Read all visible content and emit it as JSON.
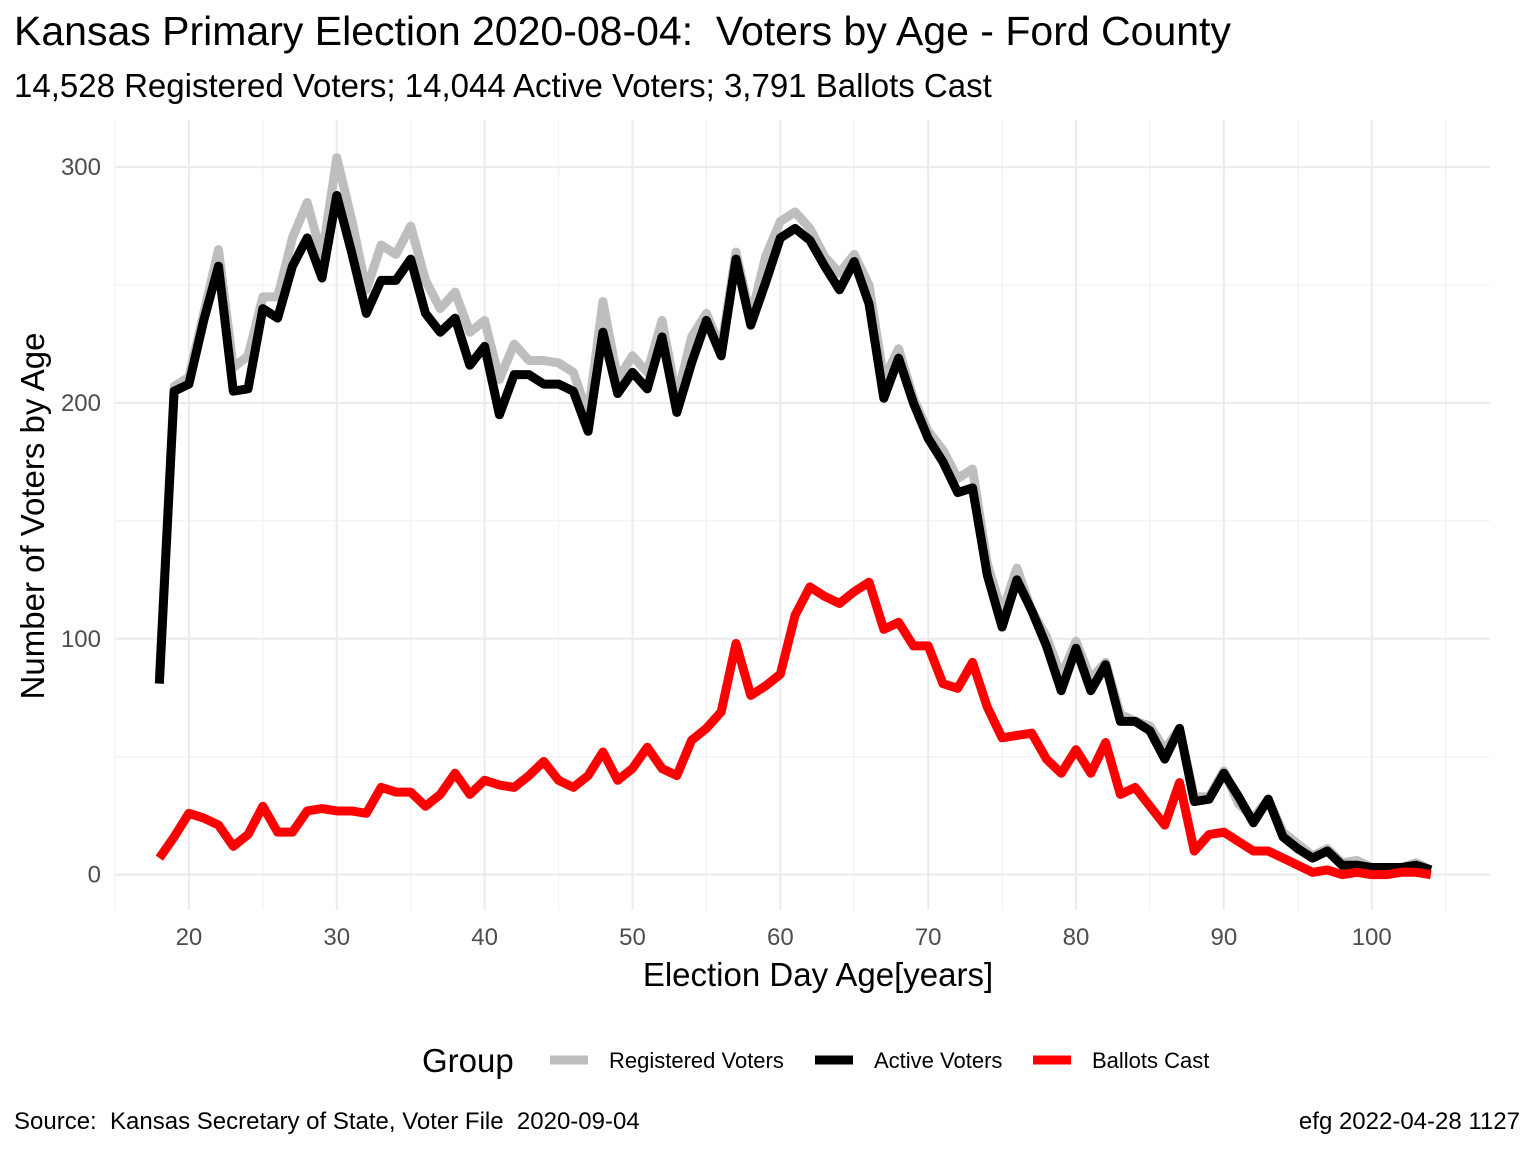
{
  "header": {
    "title": "Kansas Primary Election 2020-08-04:  Voters by Age - Ford County",
    "subtitle": "14,528 Registered Voters; 14,044 Active Voters; 3,791 Ballots Cast"
  },
  "caption": {
    "source": "Source:  Kansas Secretary of State, Voter File  2020-09-04",
    "credit": "efg 2022-04-28 1127"
  },
  "chart_data": {
    "type": "line",
    "xlabel": "Election Day Age[years]",
    "ylabel": "Number of Voters by Age",
    "xlim": [
      15,
      108
    ],
    "ylim": [
      -15,
      320
    ],
    "x_ticks": [
      20,
      30,
      40,
      50,
      60,
      70,
      80,
      90,
      100
    ],
    "y_ticks": [
      0,
      100,
      200,
      300
    ],
    "grid": true,
    "legend": {
      "title": "Group",
      "position": "bottom"
    },
    "x": [
      18,
      19,
      20,
      21,
      22,
      23,
      24,
      25,
      26,
      27,
      28,
      29,
      30,
      31,
      32,
      33,
      34,
      35,
      36,
      37,
      38,
      39,
      40,
      41,
      42,
      43,
      44,
      45,
      46,
      47,
      48,
      49,
      50,
      51,
      52,
      53,
      54,
      55,
      56,
      57,
      58,
      59,
      60,
      61,
      62,
      63,
      64,
      65,
      66,
      67,
      68,
      69,
      70,
      71,
      72,
      73,
      74,
      75,
      76,
      77,
      78,
      79,
      80,
      81,
      82,
      83,
      84,
      85,
      86,
      87,
      88,
      89,
      90,
      91,
      92,
      93,
      94,
      95,
      96,
      97,
      98,
      99,
      100,
      101,
      102,
      103,
      104
    ],
    "series": [
      {
        "name": "Registered Voters",
        "color": "#bebebe",
        "values": [
          84,
          207,
          211,
          238,
          265,
          215,
          220,
          245,
          245,
          270,
          285,
          262,
          304,
          278,
          248,
          267,
          263,
          275,
          252,
          240,
          247,
          230,
          235,
          210,
          225,
          218,
          218,
          217,
          213,
          195,
          243,
          210,
          220,
          213,
          235,
          202,
          228,
          238,
          223,
          264,
          236,
          262,
          277,
          281,
          274,
          262,
          255,
          263,
          250,
          210,
          223,
          202,
          188,
          180,
          168,
          172,
          132,
          111,
          130,
          112,
          101,
          84,
          99,
          83,
          90,
          68,
          65,
          63,
          53,
          62,
          33,
          33,
          44,
          30,
          24,
          32,
          18,
          13,
          8,
          11,
          5,
          6,
          3,
          3,
          3,
          5,
          2
        ]
      },
      {
        "name": "Active Voters",
        "color": "#000000",
        "values": [
          81,
          205,
          208,
          235,
          258,
          205,
          206,
          240,
          236,
          258,
          270,
          253,
          288,
          264,
          238,
          252,
          252,
          261,
          238,
          230,
          236,
          216,
          224,
          195,
          212,
          212,
          208,
          208,
          205,
          188,
          230,
          204,
          213,
          206,
          228,
          196,
          217,
          235,
          220,
          261,
          233,
          251,
          270,
          274,
          269,
          258,
          248,
          260,
          242,
          202,
          219,
          200,
          185,
          175,
          162,
          164,
          127,
          105,
          125,
          112,
          97,
          78,
          96,
          78,
          89,
          65,
          65,
          61,
          49,
          62,
          31,
          32,
          43,
          33,
          22,
          32,
          16,
          11,
          7,
          10,
          4,
          4,
          3,
          3,
          3,
          4,
          2
        ]
      },
      {
        "name": "Ballots Cast",
        "color": "#ff0000",
        "values": [
          7,
          16,
          26,
          24,
          21,
          12,
          17,
          29,
          18,
          18,
          27,
          28,
          27,
          27,
          26,
          37,
          35,
          35,
          29,
          34,
          43,
          34,
          40,
          38,
          37,
          42,
          48,
          40,
          37,
          42,
          52,
          40,
          45,
          54,
          45,
          42,
          57,
          62,
          69,
          98,
          76,
          80,
          85,
          110,
          122,
          118,
          115,
          120,
          124,
          104,
          107,
          97,
          97,
          81,
          79,
          90,
          71,
          58,
          59,
          60,
          49,
          43,
          53,
          43,
          56,
          34,
          37,
          29,
          21,
          39,
          10,
          17,
          18,
          14,
          10,
          10,
          7,
          4,
          1,
          2,
          0,
          1,
          0,
          0,
          1,
          1,
          0
        ]
      }
    ]
  }
}
